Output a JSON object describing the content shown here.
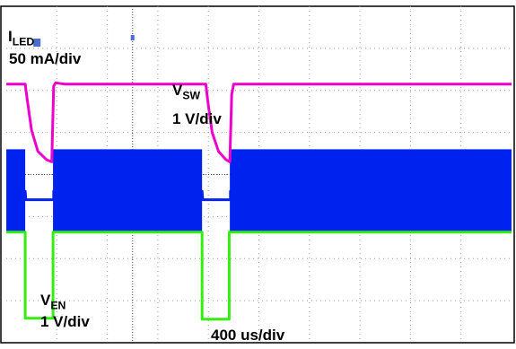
{
  "chart_data": {
    "type": "line",
    "title": "",
    "xlabel": "400 us/div",
    "grid": true,
    "x_unit": "us",
    "time_per_div_us": 400,
    "horizontal_divisions": 10,
    "vertical_divisions": 8,
    "series": [
      {
        "id": "vsw",
        "name_main": "V",
        "name_sub": "SW",
        "scale": "1 V/div",
        "color": "#ee00cc",
        "waveform": "envelope",
        "points": [
          [
            0,
            6.15
          ],
          [
            150,
            6.15
          ],
          [
            165,
            5.8
          ],
          [
            200,
            5.05
          ],
          [
            250,
            4.55
          ],
          [
            320,
            4.35
          ],
          [
            360,
            4.3
          ],
          [
            375,
            6.1
          ],
          [
            390,
            6.18
          ],
          [
            460,
            6.15
          ],
          [
            1540,
            6.15
          ],
          [
            1580,
            6.15
          ],
          [
            1595,
            5.75
          ],
          [
            1630,
            5.0
          ],
          [
            1680,
            4.55
          ],
          [
            1740,
            4.35
          ],
          [
            1770,
            4.3
          ],
          [
            1785,
            5.9
          ],
          [
            1800,
            6.15
          ],
          [
            4000,
            6.15
          ]
        ],
        "band_spans": [
          [
            0,
            150
          ],
          [
            370,
            1550
          ],
          [
            1770,
            4000
          ]
        ],
        "band_range": [
          2.65,
          4.6
        ]
      },
      {
        "id": "iled",
        "name_main": "I",
        "name_sub": "LED",
        "scale": "50 mA/div",
        "color": "#0022ee",
        "waveform": "envelope",
        "points": [
          [
            0,
            3.6
          ],
          [
            150,
            3.6
          ],
          [
            155,
            3.4
          ],
          [
            375,
            3.4
          ],
          [
            375,
            3.6
          ],
          [
            1550,
            3.6
          ],
          [
            1555,
            3.4
          ],
          [
            1775,
            3.4
          ],
          [
            1775,
            3.6
          ],
          [
            4000,
            3.6
          ]
        ],
        "band_spans": [
          [
            0,
            150
          ],
          [
            370,
            1550
          ],
          [
            1770,
            4000
          ]
        ],
        "band_range": [
          2.65,
          4.6
        ]
      },
      {
        "id": "ven",
        "name_main": "V",
        "name_sub": "EN",
        "scale": "1 V/div",
        "color": "#33ee11",
        "waveform": "digital",
        "points": [
          [
            0,
            2.63
          ],
          [
            150,
            2.63
          ],
          [
            150,
            0.58
          ],
          [
            370,
            0.58
          ],
          [
            370,
            2.63
          ],
          [
            1550,
            2.63
          ],
          [
            1550,
            0.56
          ],
          [
            1765,
            0.56
          ],
          [
            1765,
            2.63
          ],
          [
            4000,
            2.63
          ]
        ]
      }
    ],
    "trigger_marker": {
      "x": 385,
      "label": "T"
    },
    "center_marker_x": 1000
  }
}
